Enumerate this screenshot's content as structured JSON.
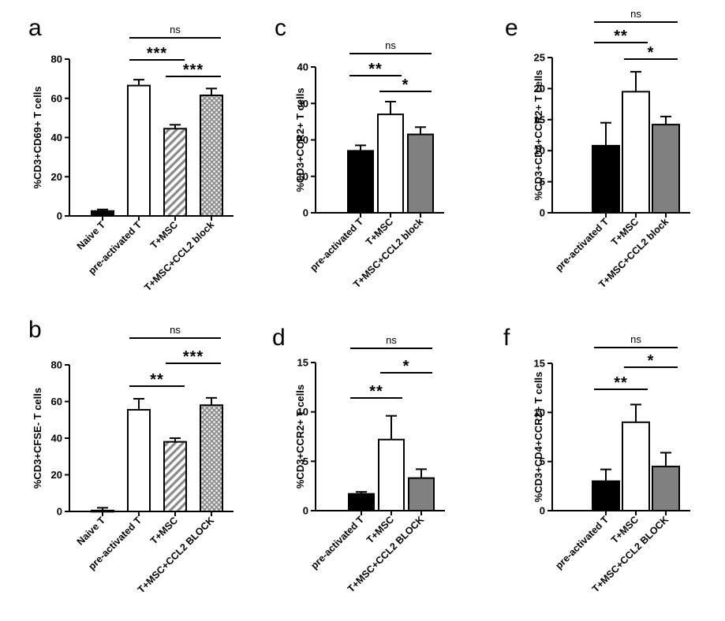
{
  "chart_data": [
    {
      "panel": "a",
      "type": "bar",
      "categories": [
        "Naive T",
        "pre-activated T",
        "T+MSC",
        "T+MSC+CCL2 block"
      ],
      "values": [
        2.5,
        66.5,
        44.5,
        61.5
      ],
      "errors": [
        0.8,
        3.0,
        2.0,
        3.5
      ],
      "fills": [
        "#000000",
        "#ffffff",
        "hatch",
        "checker"
      ],
      "ylabel": "%CD3+CD69+ T cells",
      "ylim": [
        0,
        80
      ],
      "yticks": [
        0,
        20,
        40,
        60,
        80
      ],
      "comparisons": [
        {
          "from": 1,
          "to": 3,
          "label": "ns"
        },
        {
          "from": 1,
          "to": 2,
          "label": "***"
        },
        {
          "from": 2,
          "to": 3,
          "label": "***"
        }
      ]
    },
    {
      "panel": "b",
      "type": "bar",
      "categories": [
        "Naive T",
        "pre-activated T",
        "T+MSC",
        "T+MSC+CCL2 BLOCK"
      ],
      "values": [
        0.5,
        55.5,
        38,
        58
      ],
      "errors": [
        1.5,
        6.0,
        2.0,
        4.0
      ],
      "fills": [
        "#000000",
        "#ffffff",
        "hatch",
        "checker"
      ],
      "ylabel": "%CD3+CFSE- T cells",
      "ylim": [
        0,
        80
      ],
      "yticks": [
        0,
        20,
        40,
        60,
        80
      ],
      "comparisons": [
        {
          "from": 1,
          "to": 3,
          "label": "ns"
        },
        {
          "from": 1,
          "to": 2,
          "label": "**"
        },
        {
          "from": 2,
          "to": 3,
          "label": "***"
        }
      ]
    },
    {
      "panel": "c",
      "type": "bar",
      "categories": [
        "pre-activated T",
        "T+MSC",
        "T+MSC+CCL2 block"
      ],
      "values": [
        17,
        27,
        21.5
      ],
      "errors": [
        1.5,
        3.5,
        2.0
      ],
      "fills": [
        "#000000",
        "#ffffff",
        "#808080"
      ],
      "ylabel": "%CD3+CCR2+ T cells",
      "ylim": [
        0,
        40
      ],
      "yticks": [
        0,
        10,
        20,
        30,
        40
      ],
      "comparisons": [
        {
          "from": 0,
          "to": 2,
          "label": "ns"
        },
        {
          "from": 0,
          "to": 1,
          "label": "**"
        },
        {
          "from": 1,
          "to": 2,
          "label": "*"
        }
      ]
    },
    {
      "panel": "d",
      "type": "bar",
      "categories": [
        "pre-activated T",
        "T+MSC",
        "T+MSC+CCL2 BLOCK"
      ],
      "values": [
        1.7,
        7.2,
        3.3
      ],
      "errors": [
        0.2,
        2.4,
        0.9
      ],
      "fills": [
        "#000000",
        "#ffffff",
        "#808080"
      ],
      "ylabel": "%CD3+CCR2+ T cells",
      "ylim": [
        0,
        15
      ],
      "yticks": [
        0,
        5,
        10,
        15
      ],
      "comparisons": [
        {
          "from": 0,
          "to": 2,
          "label": "ns"
        },
        {
          "from": 0,
          "to": 1,
          "label": "**"
        },
        {
          "from": 1,
          "to": 2,
          "label": "*"
        }
      ]
    },
    {
      "panel": "e",
      "type": "bar",
      "categories": [
        "pre-activated T",
        "T+MSC",
        "T+MSC+CCL2 block"
      ],
      "values": [
        10.8,
        19.5,
        14.2
      ],
      "errors": [
        3.7,
        3.2,
        1.3
      ],
      "fills": [
        "#000000",
        "#ffffff",
        "#808080"
      ],
      "ylabel": "%CD3+CD4+CCR2+ T cells",
      "ylim": [
        0,
        25
      ],
      "yticks": [
        0,
        5,
        10,
        15,
        20,
        25
      ],
      "comparisons": [
        {
          "from": 0,
          "to": 2,
          "label": "ns"
        },
        {
          "from": 0,
          "to": 1,
          "label": "**"
        },
        {
          "from": 1,
          "to": 2,
          "label": "*"
        }
      ]
    },
    {
      "panel": "f",
      "type": "bar",
      "categories": [
        "pre-activated T",
        "T+MSC",
        "T+MSC+CCL2 BLOCK"
      ],
      "values": [
        3.0,
        9.0,
        4.5
      ],
      "errors": [
        1.2,
        1.8,
        1.4
      ],
      "fills": [
        "#000000",
        "#ffffff",
        "#808080"
      ],
      "ylabel": "%CD3+CD4+CCR2+ T cells",
      "ylim": [
        0,
        15
      ],
      "yticks": [
        0,
        5,
        10,
        15
      ],
      "comparisons": [
        {
          "from": 0,
          "to": 2,
          "label": "ns"
        },
        {
          "from": 0,
          "to": 1,
          "label": "**"
        },
        {
          "from": 1,
          "to": 2,
          "label": "*"
        }
      ]
    }
  ]
}
